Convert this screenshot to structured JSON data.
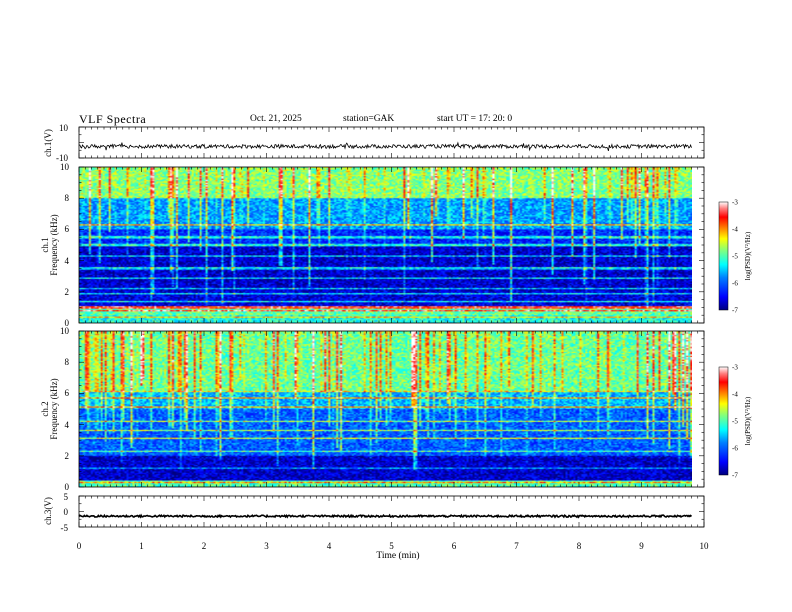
{
  "header": {
    "title": "VLF Spectra",
    "date": "Oct. 21, 2025",
    "station": "station=GAK",
    "start_ut": "start UT =    17: 20: 0"
  },
  "colors": {
    "scale": [
      "#00007f",
      "#0000ff",
      "#0080ff",
      "#00ffff",
      "#80ff80",
      "#ffff00",
      "#ff8000",
      "#ff0000",
      "#7f0000",
      "#ffffff"
    ],
    "trace": "#000000"
  },
  "chart_data": [
    {
      "name": "ch1-waveform",
      "type": "line",
      "ylabel": "ch.1(V)",
      "ylim": [
        -10,
        10
      ],
      "y_ticks": [
        "10",
        "-10"
      ],
      "x_range_min": [
        0,
        9.8
      ],
      "mean_level_v": -2.5,
      "noise_amplitude_v": 1.2
    },
    {
      "name": "ch1-spectrogram",
      "type": "heatmap",
      "ylabel": "ch.1\nFrequency (kHz)",
      "ylim": [
        0,
        10
      ],
      "y_ticks": [
        "0",
        "2",
        "4",
        "6",
        "8",
        "10"
      ],
      "x_range_min": [
        0,
        9.8
      ],
      "colorbar": {
        "label": "log(PSD)(V²/Hz)",
        "range": [
          -7,
          -3
        ],
        "ticks": [
          "-3",
          "-4",
          "-5",
          "-6",
          "-7"
        ]
      },
      "bands": [
        {
          "f_low_khz": 0.0,
          "f_high_khz": 0.5,
          "log_psd": -5.2
        },
        {
          "f_low_khz": 0.5,
          "f_high_khz": 1.1,
          "log_psd": -4.9
        },
        {
          "f_low_khz": 1.1,
          "f_high_khz": 2.0,
          "log_psd": -6.6
        },
        {
          "f_low_khz": 2.0,
          "f_high_khz": 5.0,
          "log_psd": -6.7
        },
        {
          "f_low_khz": 5.0,
          "f_high_khz": 6.0,
          "log_psd": -6.3
        },
        {
          "f_low_khz": 6.0,
          "f_high_khz": 8.0,
          "log_psd": -5.7
        },
        {
          "f_low_khz": 8.0,
          "f_high_khz": 10.0,
          "log_psd": -4.8
        }
      ],
      "line_freqs_khz": [
        0.4,
        0.8,
        1.0,
        1.4,
        1.9,
        2.2,
        2.9,
        3.5,
        4.3,
        5.0,
        5.5,
        6.3
      ],
      "impulsive_noise": "frequent broadband sferics reaching down to ~1 kHz"
    },
    {
      "name": "ch2-spectrogram",
      "type": "heatmap",
      "ylabel": "ch.2\nFrequency (kHz)",
      "ylim": [
        0,
        10
      ],
      "y_ticks": [
        "0",
        "2",
        "4",
        "6",
        "8",
        "10"
      ],
      "x_range_min": [
        0,
        9.8
      ],
      "colorbar": {
        "label": "log(PSD)(V²/Hz)",
        "range": [
          -7,
          -3
        ],
        "ticks": [
          "-3",
          "-4",
          "-5",
          "-6",
          "-7"
        ]
      },
      "bands": [
        {
          "f_low_khz": 0.0,
          "f_high_khz": 0.4,
          "log_psd": -5.0
        },
        {
          "f_low_khz": 0.4,
          "f_high_khz": 2.0,
          "log_psd": -6.7
        },
        {
          "f_low_khz": 2.0,
          "f_high_khz": 5.0,
          "log_psd": -6.0
        },
        {
          "f_low_khz": 5.0,
          "f_high_khz": 6.2,
          "log_psd": -5.6
        },
        {
          "f_low_khz": 6.2,
          "f_high_khz": 10.0,
          "log_psd": -4.9
        }
      ],
      "line_freqs_khz": [
        0.3,
        1.2,
        2.3,
        3.1,
        3.6,
        4.2,
        5.1,
        5.7,
        6.1
      ],
      "impulsive_noise": "strong emission ~6 kHz and broadband sferics above"
    },
    {
      "name": "ch3-waveform",
      "type": "line",
      "ylabel": "ch.3(V)",
      "ylim": [
        -5,
        5
      ],
      "y_ticks": [
        "5",
        "0",
        "-5"
      ],
      "x_range_min": [
        0,
        9.8
      ],
      "mean_level_v": -1.5,
      "noise_amplitude_v": 0.3
    }
  ],
  "x_axis": {
    "label": "Time  (min)",
    "ticks": [
      "0",
      "1",
      "2",
      "3",
      "4",
      "5",
      "6",
      "7",
      "8",
      "9",
      "10"
    ],
    "range": [
      0,
      10
    ]
  }
}
